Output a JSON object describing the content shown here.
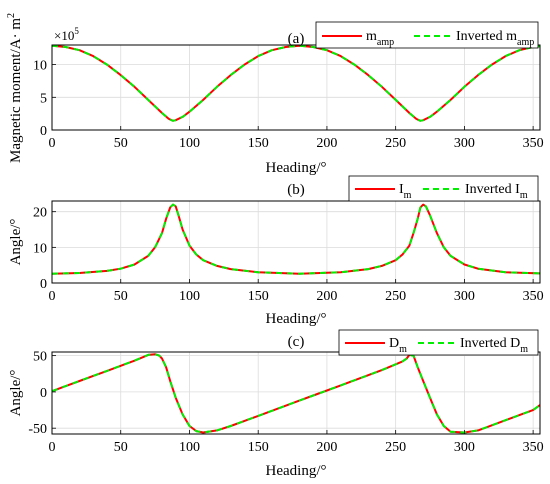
{
  "figure": {
    "background": "#ffffff",
    "colors": {
      "original": "#ff0000",
      "inverted": "#00ee00",
      "axis": "#000000",
      "grid": "#dcdcdc"
    }
  },
  "chart_data": [
    {
      "type": "line",
      "panel_label": "(a)",
      "xlabel": "Heading/°",
      "ylabel": "Magnetic moment/A· m",
      "ylabel_sup": "2",
      "y_exponent_base": "×10",
      "y_exponent_power": "5",
      "xlim": [
        0,
        355
      ],
      "ylim": [
        0,
        13
      ],
      "xticks": [
        "0",
        "50",
        "100",
        "150",
        "200",
        "250",
        "300",
        "350"
      ],
      "yticks": [
        "0",
        "5",
        "10"
      ],
      "grid": true,
      "legend": "top-right",
      "series": [
        {
          "name": "m",
          "name_sub": "amp",
          "color": "#ff0000",
          "style": "solid",
          "x": [
            0,
            10,
            20,
            30,
            40,
            50,
            60,
            70,
            80,
            85,
            88,
            90,
            95,
            100,
            110,
            120,
            130,
            140,
            150,
            160,
            170,
            180,
            190,
            200,
            210,
            220,
            230,
            240,
            250,
            260,
            265,
            268,
            270,
            275,
            280,
            290,
            300,
            310,
            320,
            330,
            340,
            350,
            355
          ],
          "y": [
            12.9,
            12.7,
            12.2,
            11.3,
            10.0,
            8.4,
            6.6,
            4.6,
            2.6,
            1.7,
            1.4,
            1.5,
            2.0,
            2.8,
            4.6,
            6.6,
            8.4,
            10.0,
            11.3,
            12.2,
            12.7,
            12.9,
            12.7,
            12.2,
            11.3,
            10.0,
            8.4,
            6.6,
            4.6,
            2.6,
            1.7,
            1.4,
            1.5,
            2.0,
            2.8,
            4.6,
            6.6,
            8.4,
            10.0,
            11.3,
            12.2,
            12.7,
            12.8
          ]
        },
        {
          "name": "Inverted m",
          "name_sub": "amp",
          "color": "#00ee00",
          "style": "dashed",
          "x": [
            0,
            10,
            20,
            30,
            40,
            50,
            60,
            70,
            80,
            85,
            88,
            90,
            95,
            100,
            110,
            120,
            130,
            140,
            150,
            160,
            170,
            180,
            190,
            200,
            210,
            220,
            230,
            240,
            250,
            260,
            265,
            268,
            270,
            275,
            280,
            290,
            300,
            310,
            320,
            330,
            340,
            350,
            355
          ],
          "y": [
            12.9,
            12.7,
            12.2,
            11.3,
            10.0,
            8.4,
            6.6,
            4.6,
            2.6,
            1.7,
            1.4,
            1.5,
            2.0,
            2.8,
            4.6,
            6.6,
            8.4,
            10.0,
            11.3,
            12.2,
            12.7,
            12.9,
            12.7,
            12.2,
            11.3,
            10.0,
            8.4,
            6.6,
            4.6,
            2.6,
            1.7,
            1.4,
            1.5,
            2.0,
            2.8,
            4.6,
            6.6,
            8.4,
            10.0,
            11.3,
            12.2,
            12.7,
            12.8
          ]
        }
      ]
    },
    {
      "type": "line",
      "panel_label": "(b)",
      "xlabel": "Heading/°",
      "ylabel": "Angle/°",
      "xlim": [
        0,
        355
      ],
      "ylim": [
        0,
        23
      ],
      "xticks": [
        "0",
        "50",
        "100",
        "150",
        "200",
        "250",
        "300",
        "350"
      ],
      "yticks": [
        "0",
        "10",
        "20"
      ],
      "grid": true,
      "legend": "top-right",
      "series": [
        {
          "name": "I",
          "name_sub": "m",
          "color": "#ff0000",
          "style": "solid",
          "x": [
            0,
            20,
            40,
            50,
            60,
            70,
            75,
            80,
            83,
            86,
            88,
            90,
            92,
            95,
            100,
            105,
            110,
            120,
            130,
            150,
            180,
            210,
            230,
            240,
            250,
            255,
            260,
            263,
            266,
            268,
            270,
            272,
            275,
            280,
            285,
            290,
            300,
            310,
            330,
            355
          ],
          "y": [
            2.6,
            2.8,
            3.4,
            4.0,
            5.2,
            7.6,
            10.0,
            14.0,
            18.0,
            21.2,
            22.0,
            21.5,
            19.0,
            15.0,
            10.5,
            8.0,
            6.4,
            4.8,
            3.9,
            3.0,
            2.6,
            3.0,
            3.9,
            4.8,
            6.4,
            8.0,
            10.5,
            14.0,
            18.0,
            21.2,
            22.0,
            21.5,
            19.0,
            14.0,
            10.0,
            7.6,
            5.2,
            4.0,
            3.0,
            2.7
          ]
        },
        {
          "name": "Inverted I",
          "name_sub": "m",
          "color": "#00ee00",
          "style": "dashed",
          "x": [
            0,
            20,
            40,
            50,
            60,
            70,
            75,
            80,
            83,
            86,
            88,
            90,
            92,
            95,
            100,
            105,
            110,
            120,
            130,
            150,
            180,
            210,
            230,
            240,
            250,
            255,
            260,
            263,
            266,
            268,
            270,
            272,
            275,
            280,
            285,
            290,
            300,
            310,
            330,
            355
          ],
          "y": [
            2.6,
            2.8,
            3.4,
            4.0,
            5.2,
            7.6,
            10.0,
            14.0,
            18.0,
            21.2,
            22.0,
            21.5,
            19.0,
            15.0,
            10.5,
            8.0,
            6.4,
            4.8,
            3.9,
            3.0,
            2.6,
            3.0,
            3.9,
            4.8,
            6.4,
            8.0,
            10.5,
            14.0,
            18.0,
            21.2,
            22.0,
            21.5,
            19.0,
            14.0,
            10.0,
            7.6,
            5.2,
            4.0,
            3.0,
            2.7
          ]
        }
      ]
    },
    {
      "type": "line",
      "panel_label": "(c)",
      "xlabel": "Heading/°",
      "ylabel": "Angle/°",
      "xlim": [
        0,
        355
      ],
      "ylim": [
        -58,
        55
      ],
      "xticks": [
        "0",
        "50",
        "100",
        "150",
        "200",
        "250",
        "300",
        "350"
      ],
      "yticks": [
        "-50",
        "0",
        "50"
      ],
      "grid": true,
      "legend": "top-right",
      "series": [
        {
          "name": "D",
          "name_sub": "m",
          "color": "#ff0000",
          "style": "solid",
          "x": [
            0,
            10,
            20,
            30,
            40,
            50,
            60,
            65,
            70,
            75,
            78,
            80,
            83,
            86,
            90,
            95,
            100,
            105,
            110,
            120,
            130,
            140,
            150,
            160,
            170,
            180,
            190,
            200,
            210,
            220,
            230,
            240,
            245,
            250,
            255,
            258,
            260,
            263,
            266,
            270,
            275,
            280,
            285,
            290,
            300,
            310,
            320,
            330,
            340,
            350,
            355
          ],
          "y": [
            1,
            8,
            15,
            22,
            29,
            36,
            43,
            47,
            51,
            52,
            50,
            46,
            34,
            15,
            -8,
            -31,
            -47,
            -54,
            -56,
            -53,
            -47,
            -40,
            -33,
            -26,
            -19,
            -12,
            -5,
            2,
            9,
            16,
            23,
            30,
            34,
            38,
            42,
            46,
            51,
            50,
            34,
            15,
            -8,
            -31,
            -47,
            -55,
            -56,
            -53,
            -46,
            -39,
            -32,
            -25,
            -18
          ]
        },
        {
          "name": "Inverted D",
          "name_sub": "m",
          "color": "#00ee00",
          "style": "dashed",
          "x": [
            0,
            10,
            20,
            30,
            40,
            50,
            60,
            65,
            70,
            75,
            78,
            80,
            83,
            86,
            90,
            95,
            100,
            105,
            110,
            120,
            130,
            140,
            150,
            160,
            170,
            180,
            190,
            200,
            210,
            220,
            230,
            240,
            245,
            250,
            255,
            258,
            260,
            263,
            266,
            270,
            275,
            280,
            285,
            290,
            300,
            310,
            320,
            330,
            340,
            350,
            355
          ],
          "y": [
            1,
            8,
            15,
            22,
            29,
            36,
            43,
            47,
            51,
            52,
            50,
            46,
            34,
            15,
            -8,
            -31,
            -47,
            -54,
            -56,
            -53,
            -47,
            -40,
            -33,
            -26,
            -19,
            -12,
            -5,
            2,
            9,
            16,
            23,
            30,
            34,
            38,
            42,
            46,
            51,
            50,
            34,
            15,
            -8,
            -31,
            -47,
            -55,
            -56,
            -53,
            -46,
            -39,
            -32,
            -25,
            -18
          ]
        }
      ]
    }
  ]
}
